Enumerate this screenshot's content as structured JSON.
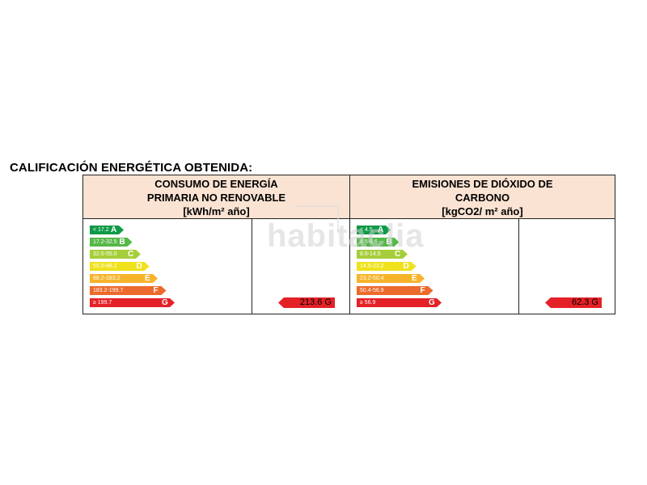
{
  "title": "CALIFICACIÓN ENERGÉTICA OBTENIDA:",
  "watermark": "habitaclia",
  "panels": [
    {
      "id": "energy",
      "header": [
        "CONSUMO DE ENERGÍA",
        "PRIMARIA NO RENOVABLE",
        "[kWh/m² año]"
      ],
      "scale": [
        {
          "range": "< 17.2",
          "letter": "A",
          "color": "#0f9a48"
        },
        {
          "range": "17.2-32.5",
          "letter": "B",
          "color": "#55b847"
        },
        {
          "range": "32.5-55.0",
          "letter": "C",
          "color": "#a6ce3a"
        },
        {
          "range": "55.0-88.2",
          "letter": "D",
          "color": "#efe21c"
        },
        {
          "range": "88.2-183.2",
          "letter": "E",
          "color": "#f7b42a"
        },
        {
          "range": "183.2-199.7",
          "letter": "F",
          "color": "#ec6a2b"
        },
        {
          "range": "≥ 199.7",
          "letter": "G",
          "color": "#e42127"
        }
      ],
      "result": {
        "value": "213.6 G",
        "letter": "G",
        "color": "#e42127"
      }
    },
    {
      "id": "emissions",
      "header": [
        "EMISIONES DE DIÓXIDO DE",
        "CARBONO",
        "[kgCO2/ m² año]"
      ],
      "scale": [
        {
          "range": "< 4.5",
          "letter": "A",
          "color": "#0f9a48"
        },
        {
          "range": "4.5-8.6",
          "letter": "B",
          "color": "#55b847"
        },
        {
          "range": "8.6-14.5",
          "letter": "C",
          "color": "#a6ce3a"
        },
        {
          "range": "14.5-23.2",
          "letter": "D",
          "color": "#efe21c"
        },
        {
          "range": "23.2-50.4",
          "letter": "E",
          "color": "#f7b42a"
        },
        {
          "range": "50.4-56.9",
          "letter": "F",
          "color": "#ec6a2b"
        },
        {
          "range": "≥ 56.9",
          "letter": "G",
          "color": "#e42127"
        }
      ],
      "result": {
        "value": "62.3 G",
        "letter": "G",
        "color": "#e42127"
      }
    }
  ]
}
